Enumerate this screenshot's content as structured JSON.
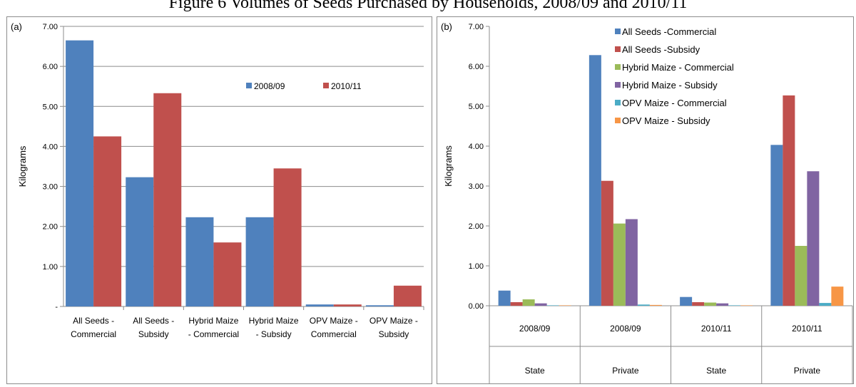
{
  "figure_title": "Figure 6 Volumes of Seeds Purchased by Households, 2008/09 and 2010/11",
  "colors": {
    "blue": "#4F81BD",
    "red": "#C0504D",
    "green": "#9BBB59",
    "purple": "#8064A2",
    "teal": "#4BACC6",
    "orange": "#F79646"
  },
  "chart_data": [
    {
      "panel_label": "(a)",
      "type": "bar",
      "ylabel": "Kilograms",
      "xlabel": "",
      "ylim": [
        0,
        7
      ],
      "y_ticks": [
        "-",
        "1.00",
        "2.00",
        "3.00",
        "4.00",
        "5.00",
        "6.00",
        "7.00"
      ],
      "grid": true,
      "legend_position": "top-right",
      "categories": [
        [
          "All Seeds -",
          "Commercial"
        ],
        [
          "All Seeds -",
          "Subsidy"
        ],
        [
          "Hybrid Maize",
          "- Commercial"
        ],
        [
          "Hybrid Maize",
          "- Subsidy"
        ],
        [
          "OPV Maize -",
          "Commercial"
        ],
        [
          "OPV Maize -",
          "Subsidy"
        ]
      ],
      "series": [
        {
          "name": "2008/09",
          "color": "#4F81BD",
          "values": [
            6.65,
            3.23,
            2.23,
            2.23,
            0.05,
            0.03
          ]
        },
        {
          "name": "2010/11",
          "color": "#C0504D",
          "values": [
            4.25,
            5.33,
            1.6,
            3.45,
            0.05,
            0.52
          ]
        }
      ]
    },
    {
      "panel_label": "(b)",
      "type": "bar",
      "ylabel": "Kilograms",
      "xlabel": "",
      "ylim": [
        0,
        7
      ],
      "y_ticks": [
        "0.00",
        "1.00",
        "2.00",
        "3.00",
        "4.00",
        "5.00",
        "6.00",
        "7.00"
      ],
      "grid": false,
      "legend_position": "top-center",
      "categories": [
        "2008/09",
        "2008/09",
        "2010/11",
        "2010/11"
      ],
      "category_groups": [
        "State",
        "Private",
        "State",
        "Private"
      ],
      "series": [
        {
          "name": "All Seeds -Commercial",
          "color": "#4F81BD",
          "values": [
            0.38,
            6.28,
            0.22,
            4.03
          ]
        },
        {
          "name": "All Seeds -Subsidy",
          "color": "#C0504D",
          "values": [
            0.09,
            3.13,
            0.09,
            5.27
          ]
        },
        {
          "name": "Hybrid Maize - Commercial",
          "color": "#9BBB59",
          "values": [
            0.16,
            2.06,
            0.08,
            1.5
          ]
        },
        {
          "name": "Hybrid Maize - Subsidy",
          "color": "#8064A2",
          "values": [
            0.06,
            2.17,
            0.06,
            3.37
          ]
        },
        {
          "name": "OPV Maize - Commercial",
          "color": "#4BACC6",
          "values": [
            0.01,
            0.03,
            0.01,
            0.07
          ]
        },
        {
          "name": "OPV Maize - Subsidy",
          "color": "#F79646",
          "values": [
            0.0,
            0.02,
            0.0,
            0.48
          ]
        }
      ]
    }
  ]
}
